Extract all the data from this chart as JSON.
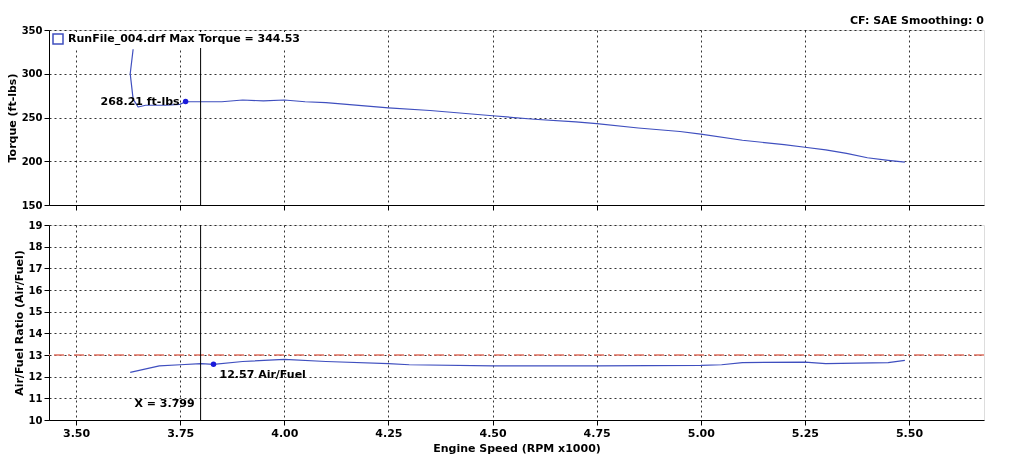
{
  "chart_data": [
    {
      "type": "line",
      "ylabel": "Torque (ft-lbs)",
      "xlim": [
        3.435,
        5.68
      ],
      "xticks": [
        3.5,
        3.75,
        4.0,
        4.25,
        4.5,
        4.75,
        5.0,
        5.25,
        5.5
      ],
      "ylim": [
        150,
        350
      ],
      "yticks": [
        150,
        200,
        250,
        300,
        350
      ],
      "tick_labels": "y",
      "grid": true,
      "legend": "top left",
      "marker": "none",
      "line_style": "solid",
      "series": [
        {
          "name": "RunFile_004.drf Max Torque = 344.53",
          "color": "#3f4fbf",
          "x": [
            3.637,
            3.63,
            3.637,
            3.649,
            3.667,
            3.714,
            3.749,
            3.763,
            3.8,
            3.85,
            3.9,
            3.95,
            4.0,
            4.05,
            4.1,
            4.15,
            4.2,
            4.25,
            4.35,
            4.45,
            4.5,
            4.6,
            4.7,
            4.75,
            4.85,
            4.95,
            5.0,
            5.1,
            5.2,
            5.25,
            5.3,
            5.35,
            5.4,
            5.45,
            5.49
          ],
          "values": [
            328,
            300,
            271,
            262,
            264,
            264,
            265,
            268,
            268,
            268,
            270,
            269,
            270,
            268,
            267,
            265,
            263,
            261,
            258,
            254,
            252,
            248,
            245,
            243,
            238,
            234,
            231,
            224,
            219,
            216,
            213,
            209,
            204,
            201,
            199
          ]
        }
      ],
      "ref_lines": [
        {
          "axis": "x",
          "value": 3.799,
          "color": "#000000"
        }
      ],
      "annotations": [
        {
          "text": "268.21 ft-lbs",
          "x": 3.763,
          "y": 268.21
        },
        "CF: SAE  Smoothing: 0"
      ]
    },
    {
      "type": "line",
      "xlabel": "Engine Speed (RPM x1000)",
      "ylabel": "Air/Fuel Ratio (Air/Fuel)",
      "xlim": [
        3.435,
        5.68
      ],
      "xticks": [
        {
          "value": 3.5,
          "label": "3.50"
        },
        {
          "value": 3.75,
          "label": "3.75"
        },
        {
          "value": 4.0,
          "label": "4.00"
        },
        {
          "value": 4.25,
          "label": "4.25"
        },
        {
          "value": 4.5,
          "label": "4.50"
        },
        {
          "value": 4.75,
          "label": "4.75"
        },
        {
          "value": 5.0,
          "label": "5.00"
        },
        {
          "value": 5.25,
          "label": "5.25"
        },
        {
          "value": 5.5,
          "label": "5.50"
        }
      ],
      "ylim": [
        10,
        19
      ],
      "yticks": [
        10,
        11,
        12,
        13,
        14,
        15,
        16,
        17,
        18,
        19
      ],
      "grid": true,
      "marker": "none",
      "line_style": "solid",
      "series": [
        {
          "color": "#3f4fbf",
          "x": [
            3.63,
            3.7,
            3.75,
            3.8,
            3.83,
            3.9,
            4.0,
            4.1,
            4.25,
            4.3,
            4.5,
            4.75,
            5.0,
            5.05,
            5.1,
            5.25,
            5.3,
            5.45,
            5.49
          ],
          "values": [
            12.2,
            12.5,
            12.55,
            12.6,
            12.57,
            12.7,
            12.8,
            12.7,
            12.6,
            12.55,
            12.5,
            12.5,
            12.52,
            12.55,
            12.65,
            12.67,
            12.6,
            12.65,
            12.75
          ]
        }
      ],
      "ref_lines": [
        {
          "axis": "y",
          "value": 13,
          "color": "#e07060",
          "line_style": "dashed"
        },
        {
          "axis": "x",
          "value": 3.799,
          "color": "#000000",
          "label": "X = 3.799"
        }
      ],
      "annotations": [
        {
          "text": "12.57 Air/Fuel",
          "x": 3.83,
          "y": 12.57
        }
      ]
    }
  ]
}
